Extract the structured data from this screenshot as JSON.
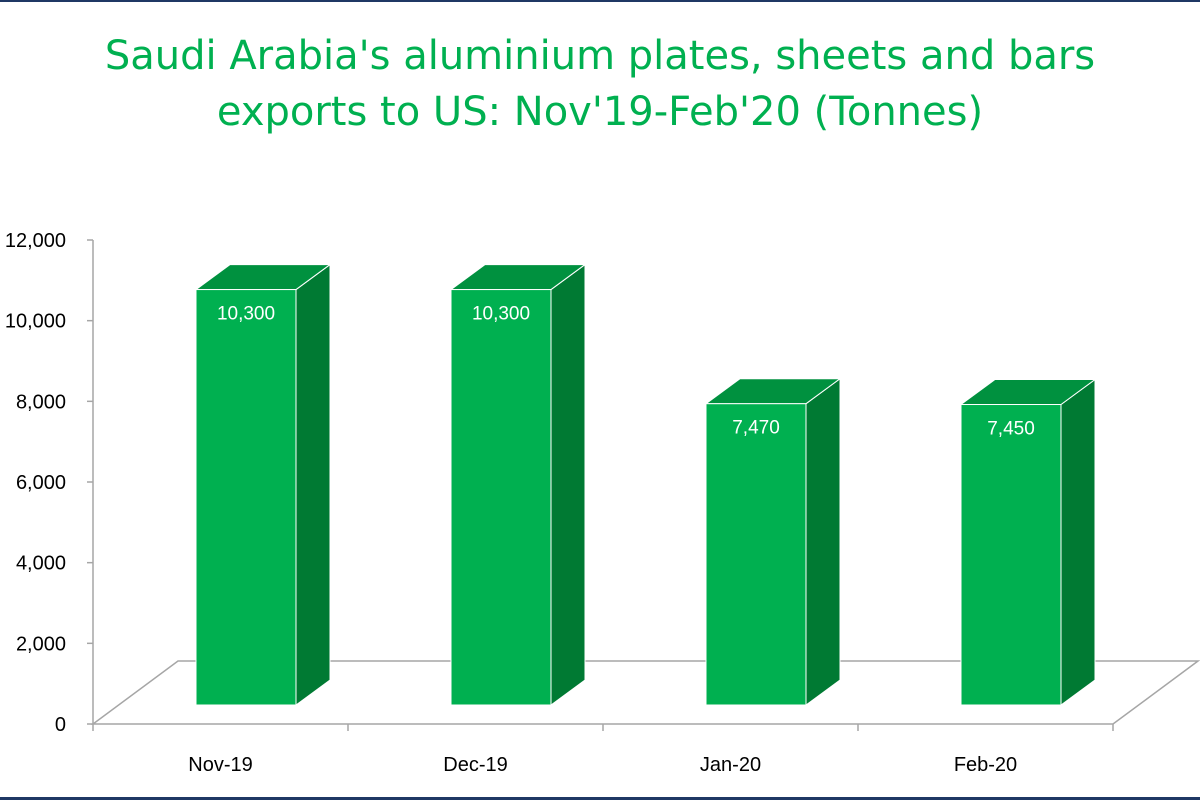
{
  "chart_data": {
    "type": "bar",
    "title_lines": [
      "Saudi Arabia's aluminium plates, sheets and bars",
      "exports to US: Nov'19-Feb'20 (Tonnes)"
    ],
    "categories": [
      "Nov-19",
      "Dec-19",
      "Jan-20",
      "Feb-20"
    ],
    "values": [
      10300,
      10300,
      7470,
      7450
    ],
    "data_labels": [
      "10,300",
      "10,300",
      "7,470",
      "7,450"
    ],
    "ylim": [
      0,
      12000
    ],
    "yticks": [
      0,
      2000,
      4000,
      6000,
      8000,
      10000,
      12000
    ],
    "ytick_labels": [
      "0",
      "2,000",
      "4,000",
      "6,000",
      "8,000",
      "10,000",
      "12,000"
    ],
    "xlabel": "",
    "ylabel": "",
    "grid": false,
    "legend": "none",
    "style": "3d-column",
    "colors": {
      "bar_front": "#00b050",
      "bar_side": "#007a33",
      "bar_top": "#00913f",
      "title": "#00b050",
      "axis": "#a6a6a6",
      "data_label": "#ffffff",
      "frame": "#1f3864"
    }
  }
}
